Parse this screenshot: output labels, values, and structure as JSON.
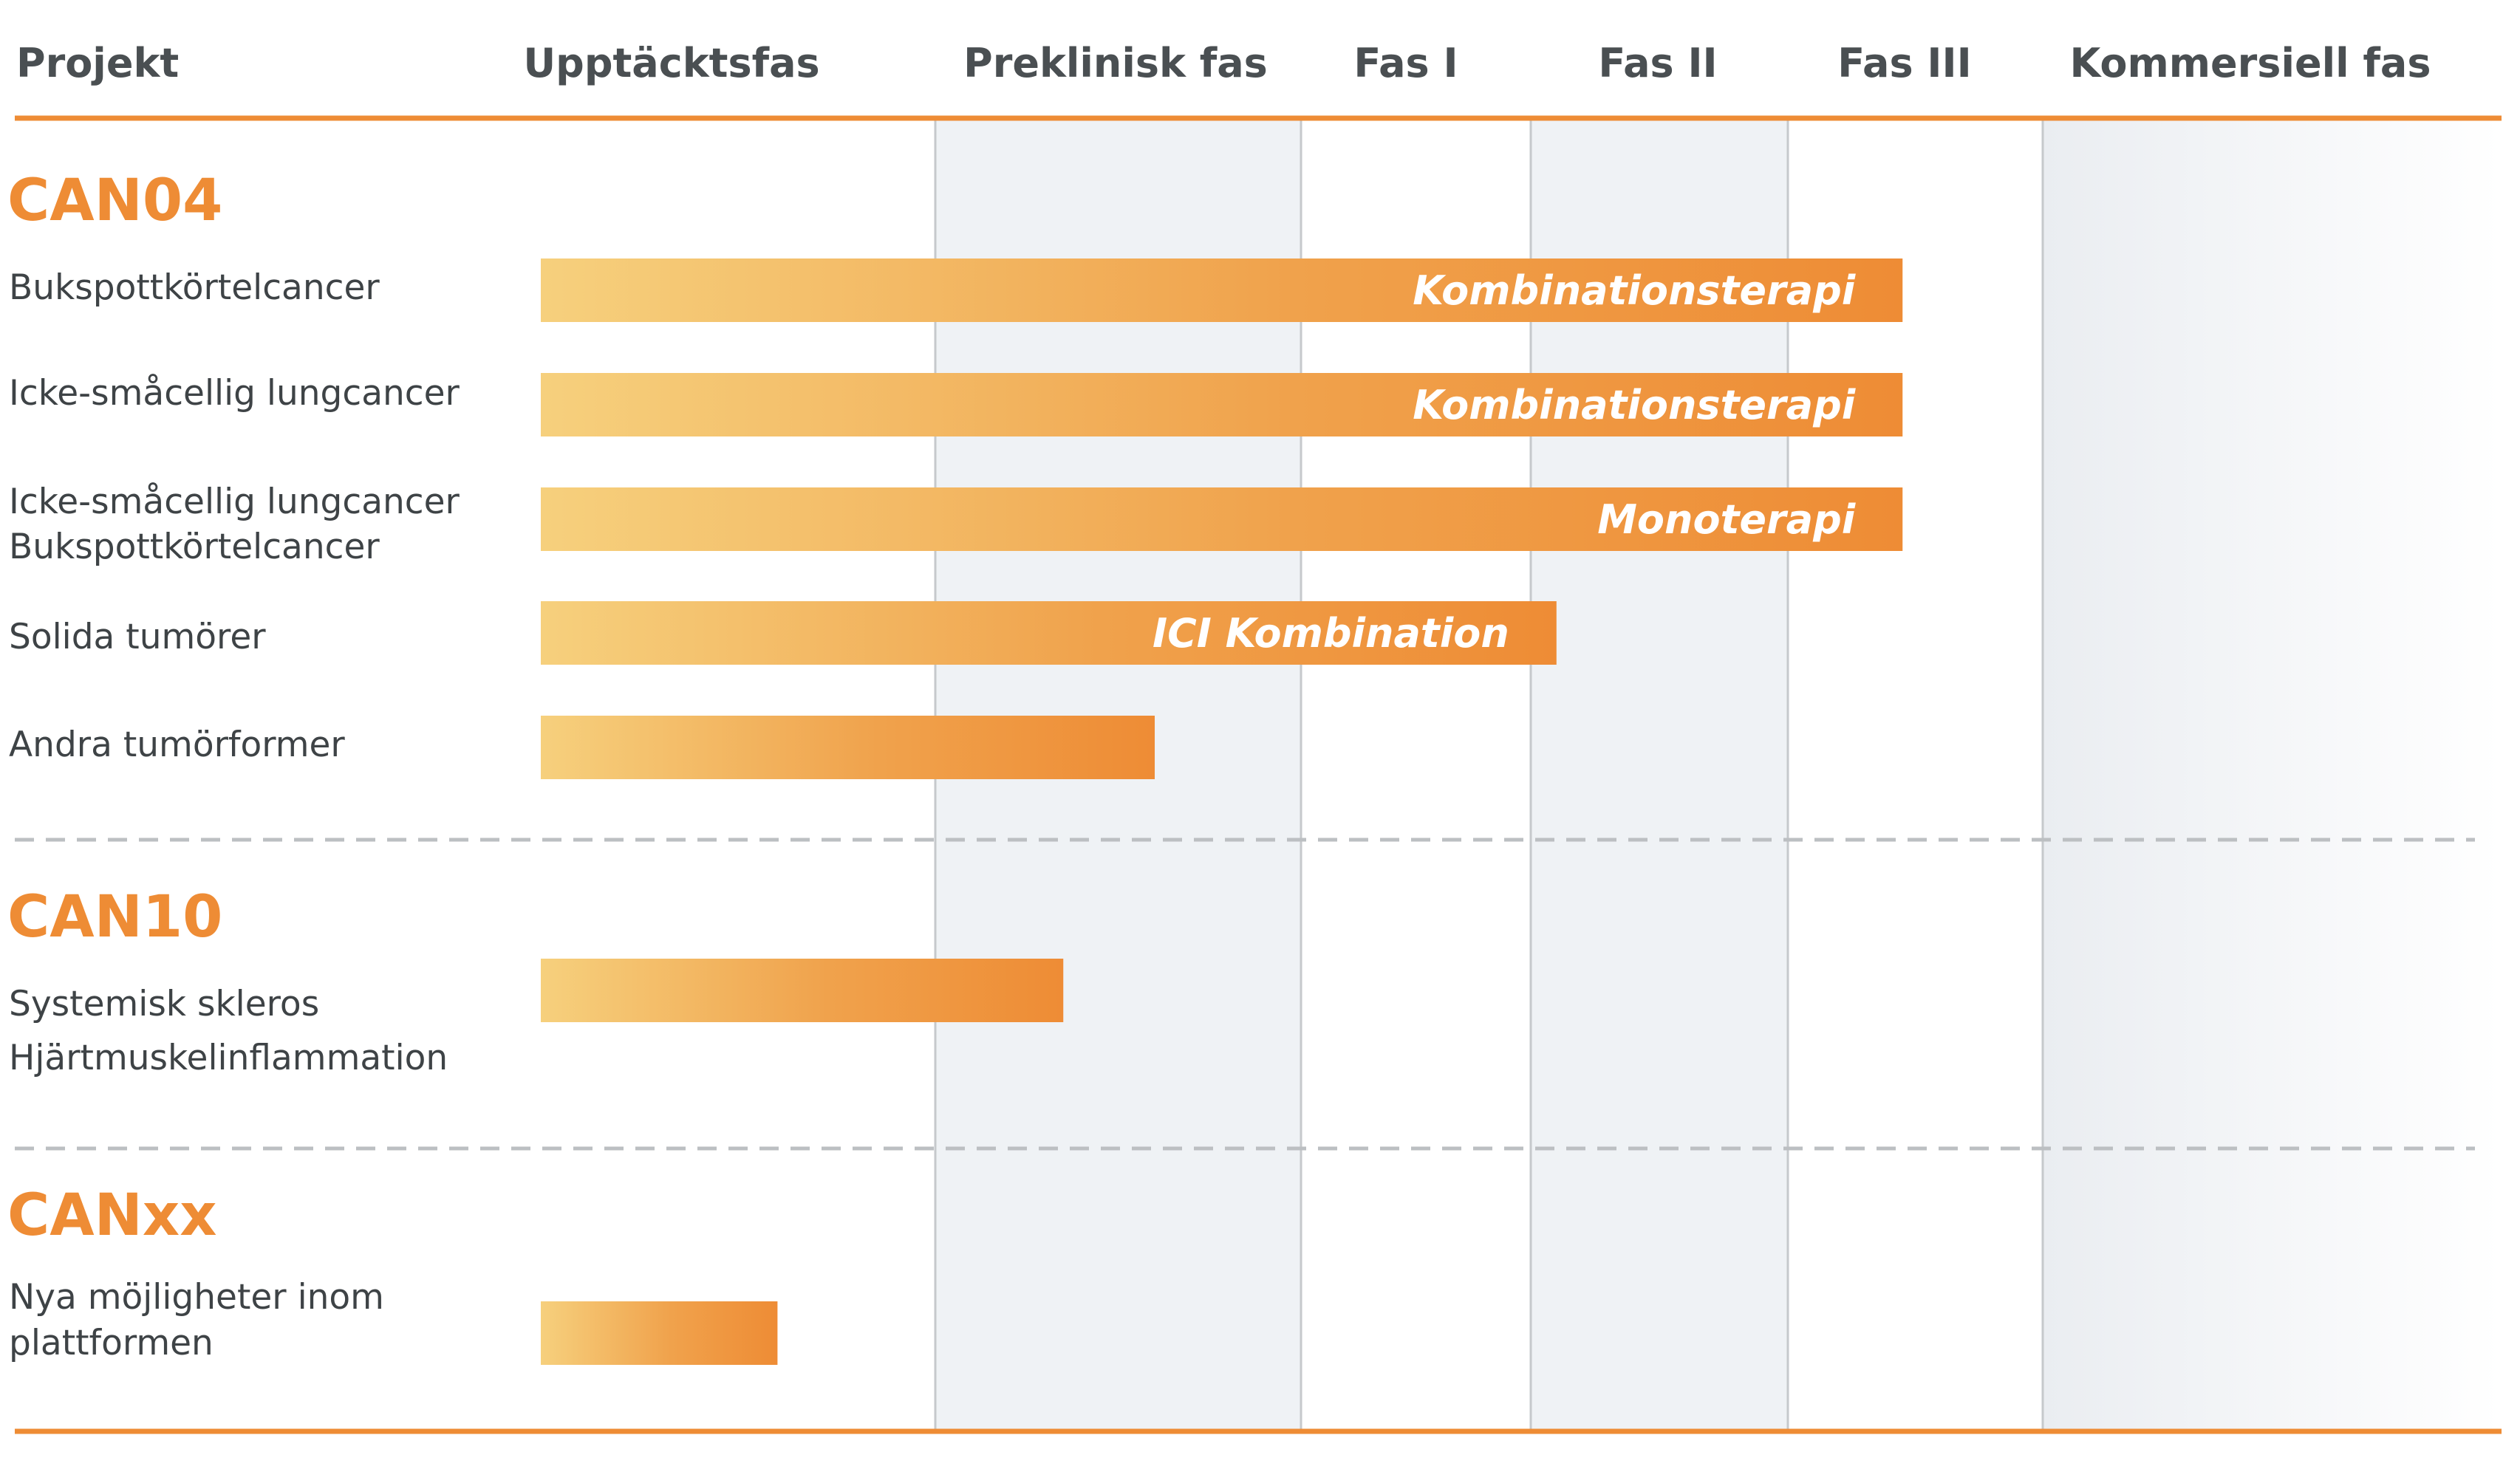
{
  "chart_data": {
    "type": "bar",
    "orientation": "horizontal",
    "title": "",
    "columns": {
      "header_label": "Projekt",
      "phases": [
        "Upptäcktsfas",
        "Preklinisk fas",
        "Fas I",
        "Fas II",
        "Fas III",
        "Kommersiell fas"
      ]
    },
    "colors": {
      "accent": "#ee8c35",
      "bar_start": "#f6d07d",
      "bar_end": "#ee8c35",
      "shade": "#eff2f5",
      "text": "#3e4346"
    },
    "groups": [
      {
        "name": "CAN04",
        "rows": [
          {
            "labels": [
              "Bukspottkörtelcancer"
            ],
            "progress_phases": 4.45,
            "bar_label": "Kombinationsterapi"
          },
          {
            "labels": [
              "Icke-småcellig lungcancer"
            ],
            "progress_phases": 4.45,
            "bar_label": "Kombinationsterapi"
          },
          {
            "labels": [
              "Icke-småcellig lungcancer",
              "Bukspottkörtelcancer"
            ],
            "progress_phases": 4.45,
            "bar_label": "Monoterapi"
          },
          {
            "labels": [
              "Solida tumörer"
            ],
            "progress_phases": 3.1,
            "bar_label": "ICI Kombination"
          },
          {
            "labels": [
              "Andra tumörformer"
            ],
            "progress_phases": 1.6,
            "bar_label": ""
          }
        ]
      },
      {
        "name": "CAN10",
        "rows": [
          {
            "labels": [
              "Systemisk skleros",
              "Hjärtmuskelinflammation"
            ],
            "progress_phases": 1.35,
            "bar_label": ""
          }
        ]
      },
      {
        "name": "CANxx",
        "rows": [
          {
            "labels": [
              "Nya möjligheter inom",
              "plattformen"
            ],
            "progress_phases": 0.6,
            "bar_label": ""
          }
        ]
      }
    ]
  }
}
